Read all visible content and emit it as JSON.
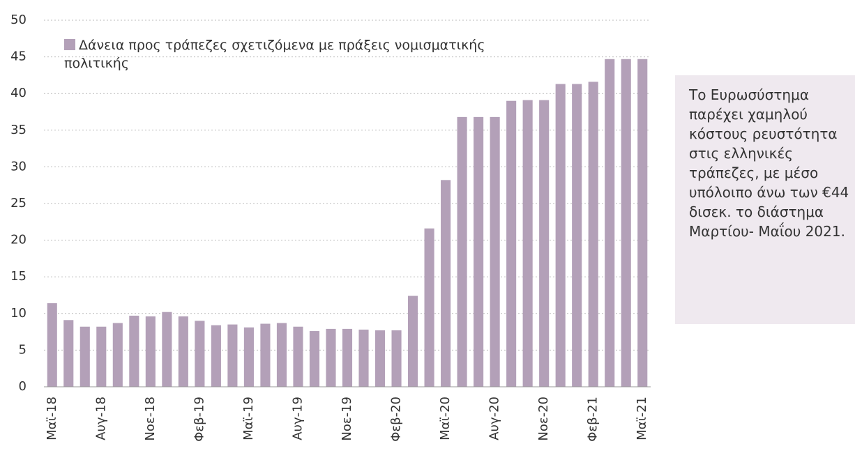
{
  "chart_data": {
    "type": "bar",
    "categories": [
      "Μαϊ-18",
      null,
      null,
      "Αυγ-18",
      null,
      null,
      "Νοε-18",
      null,
      null,
      "Φεβ-19",
      null,
      null,
      "Μαϊ-19",
      null,
      null,
      "Αυγ-19",
      null,
      null,
      "Νοε-19",
      null,
      null,
      "Φεβ-20",
      null,
      null,
      "Μαϊ-20",
      null,
      null,
      "Αυγ-20",
      null,
      null,
      "Νοε-20",
      null,
      null,
      "Φεβ-21",
      null,
      null,
      "Μαϊ-21"
    ],
    "series": [
      {
        "name": "Δάνεια προς τράπεζες σχετιζόμενα με πράξεις νομισματικής πολιτικής",
        "color": "#b3a0b8",
        "values": [
          11.4,
          9.1,
          8.2,
          8.2,
          8.7,
          9.7,
          9.6,
          10.2,
          9.6,
          9.0,
          8.4,
          8.5,
          8.1,
          8.6,
          8.7,
          8.2,
          7.6,
          7.9,
          7.9,
          7.8,
          7.7,
          7.7,
          12.4,
          21.6,
          28.2,
          36.8,
          36.8,
          36.8,
          39.0,
          39.1,
          39.1,
          41.3,
          41.3,
          41.6,
          44.7,
          44.7,
          44.7
        ]
      }
    ],
    "ylim": [
      0,
      50
    ],
    "yticks": [
      0,
      5,
      10,
      15,
      20,
      25,
      30,
      35,
      40,
      45,
      50
    ],
    "grid": true,
    "annotation": "Το Ευρωσύστημα παρέχει χαμηλού κόστους ρευστότητα στις ελληνικές τράπεζες, με μέσο υπόλοιπο άνω των €44 δισεκ. το διάστημα Μαρτίου- Μαΐου 2021."
  }
}
